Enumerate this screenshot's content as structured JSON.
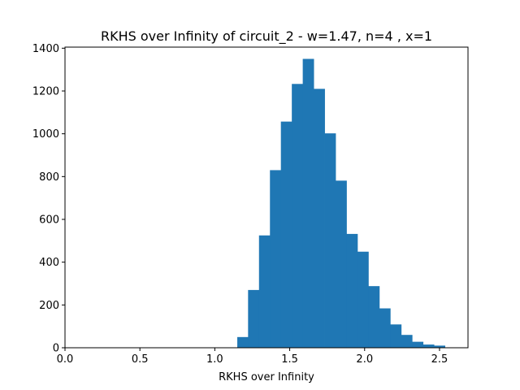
{
  "chart_data": {
    "type": "bar",
    "title": "RKHS over Infinity of circuit_2 - w=1.47, n=4 , x=1",
    "xlabel": "RKHS over Infinity",
    "ylabel": "",
    "xlim": [
      0.0,
      2.69
    ],
    "ylim": [
      0,
      1405
    ],
    "xticks": [
      0.0,
      0.5,
      1.0,
      1.5,
      2.0,
      2.5
    ],
    "xtick_labels": [
      "0.0",
      "0.5",
      "1.0",
      "1.5",
      "2.0",
      "2.5"
    ],
    "yticks": [
      0,
      200,
      400,
      600,
      800,
      1000,
      1200,
      1400
    ],
    "ytick_labels": [
      "0",
      "200",
      "400",
      "600",
      "800",
      "1000",
      "1200",
      "1400"
    ],
    "bin_edges": [
      1.15,
      1.222,
      1.295,
      1.368,
      1.441,
      1.514,
      1.587,
      1.66,
      1.733,
      1.806,
      1.879,
      1.952,
      2.025,
      2.098,
      2.171,
      2.244,
      2.317,
      2.39,
      2.463,
      2.536
    ],
    "values": [
      50,
      270,
      525,
      830,
      1057,
      1233,
      1350,
      1210,
      1002,
      781,
      532,
      449,
      288,
      184,
      109,
      60,
      28,
      15,
      10
    ],
    "color": "#1f77b4",
    "grid": false
  }
}
